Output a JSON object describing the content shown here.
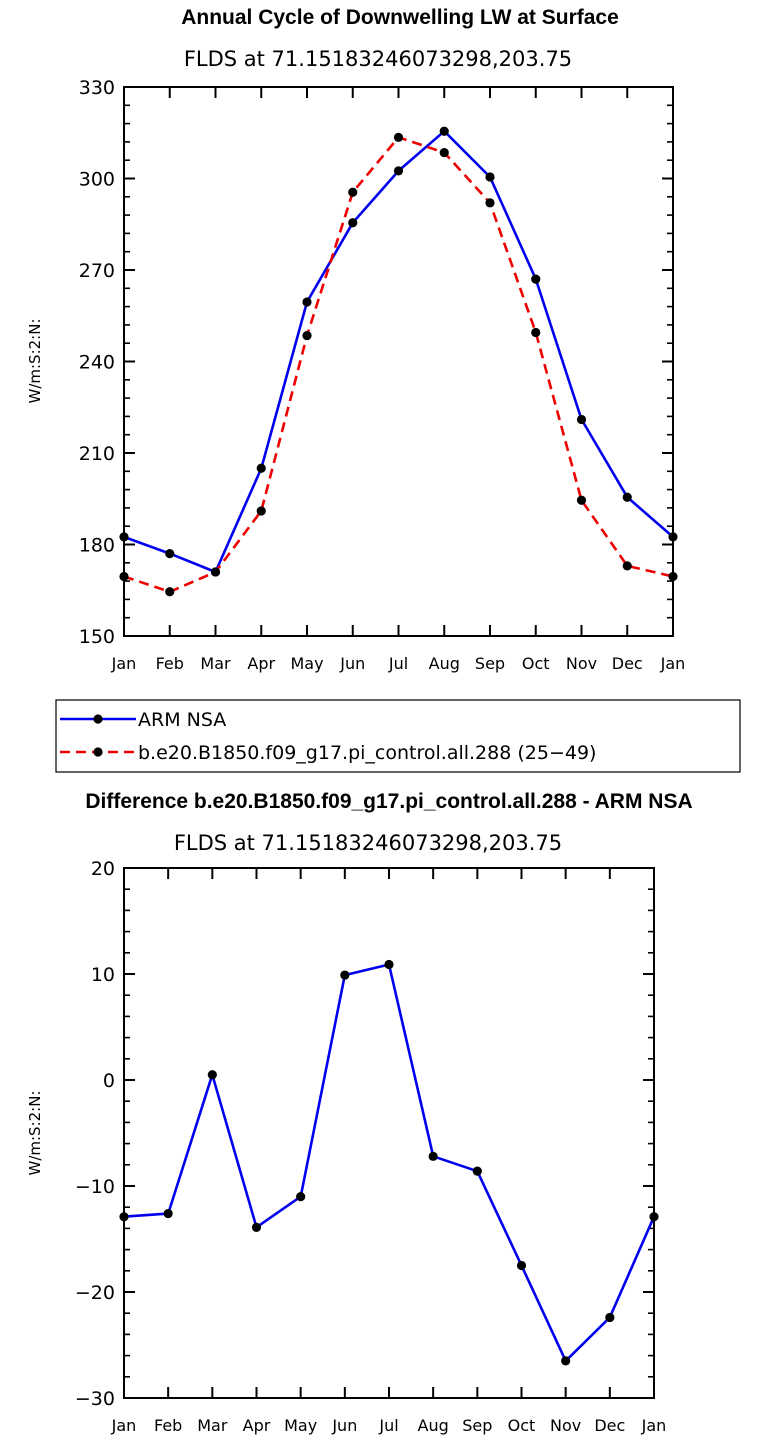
{
  "chart_data": [
    {
      "type": "line",
      "title": "Annual Cycle of Downwelling LW at Surface",
      "subtitle": "FLDS at 71.15183246073298,203.75",
      "ylabel": "W/m:S:2:N:",
      "xlabel": "",
      "ylim": [
        150,
        330
      ],
      "yticks": [
        150,
        180,
        210,
        240,
        270,
        300,
        330
      ],
      "categories": [
        "Jan",
        "Feb",
        "Mar",
        "Apr",
        "May",
        "Jun",
        "Jul",
        "Aug",
        "Sep",
        "Oct",
        "Nov",
        "Dec",
        "Jan"
      ],
      "series": [
        {
          "name": "ARM NSA",
          "color": "#0000ee",
          "dash": "solid",
          "values": [
            182.5,
            177.0,
            171.0,
            205.0,
            259.5,
            285.5,
            302.5,
            315.5,
            300.5,
            267.0,
            221.0,
            195.5,
            182.5
          ]
        },
        {
          "name": "b.e20.B1850.f09_g17.pi_control.all.288 (25−49)",
          "color": "#ee0000",
          "dash": "dashed",
          "values": [
            169.5,
            164.5,
            171.0,
            191.0,
            248.5,
            295.5,
            313.5,
            308.5,
            292.0,
            249.5,
            194.5,
            173.0,
            169.5
          ]
        }
      ],
      "legend": "below"
    },
    {
      "type": "line",
      "title": "Difference b.e20.B1850.f09_g17.pi_control.all.288 - ARM NSA",
      "subtitle": "FLDS at 71.15183246073298,203.75",
      "ylabel": "W/m:S:2:N:",
      "xlabel": "",
      "ylim": [
        -30,
        20
      ],
      "yticks": [
        -30,
        -20,
        -10,
        0,
        10,
        20
      ],
      "ytick_labels": [
        "−30",
        "−20",
        "−10",
        "0",
        "10",
        "20"
      ],
      "categories": [
        "Jan",
        "Feb",
        "Mar",
        "Apr",
        "May",
        "Jun",
        "Jul",
        "Aug",
        "Sep",
        "Oct",
        "Nov",
        "Dec",
        "Jan"
      ],
      "series": [
        {
          "name": "Difference",
          "color": "#0000ee",
          "dash": "solid",
          "values": [
            -12.9,
            -12.6,
            0.5,
            -13.9,
            -11.0,
            9.9,
            10.9,
            -7.2,
            -8.6,
            -17.5,
            -26.5,
            -22.4,
            -12.9
          ]
        }
      ]
    }
  ]
}
